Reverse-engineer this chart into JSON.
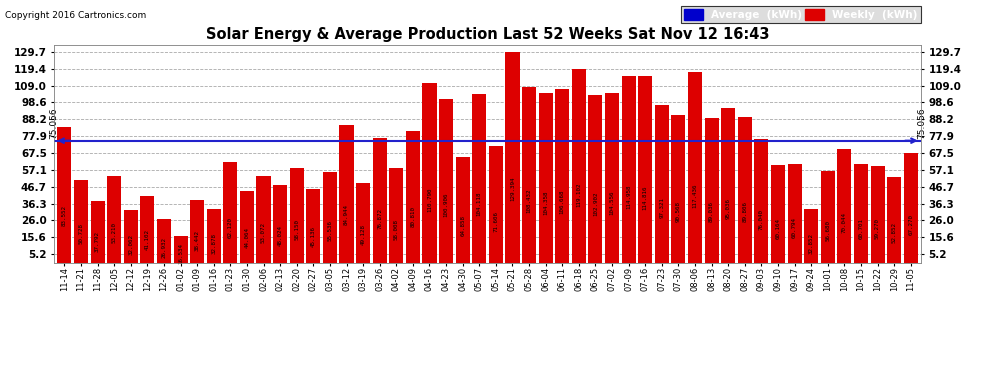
{
  "title": "Solar Energy & Average Production Last 52 Weeks Sat Nov 12 16:43",
  "copyright": "Copyright 2016 Cartronics.com",
  "average_value": 75.056,
  "bar_color": "#dd0000",
  "average_line_color": "#2222cc",
  "background_color": "#ffffff",
  "plot_bg_color": "#ffffff",
  "grid_color": "#aaaaaa",
  "yticks": [
    5.2,
    15.6,
    26.0,
    36.3,
    46.7,
    57.1,
    67.5,
    77.9,
    88.2,
    98.6,
    109.0,
    119.4,
    129.7
  ],
  "ymin": 0,
  "ymax": 134,
  "categories": [
    "11-14",
    "11-21",
    "11-28",
    "12-05",
    "12-12",
    "12-19",
    "12-26",
    "01-02",
    "01-09",
    "01-16",
    "01-23",
    "01-30",
    "02-06",
    "02-13",
    "02-20",
    "02-27",
    "03-05",
    "03-12",
    "03-19",
    "03-26",
    "04-02",
    "04-09",
    "04-16",
    "04-23",
    "04-30",
    "05-07",
    "05-14",
    "05-21",
    "05-28",
    "06-04",
    "06-11",
    "06-18",
    "06-25",
    "07-02",
    "07-09",
    "07-16",
    "07-23",
    "07-30",
    "08-06",
    "08-13",
    "08-20",
    "08-27",
    "09-03",
    "09-10",
    "09-17",
    "09-24",
    "10-01",
    "10-08",
    "10-15",
    "10-22",
    "10-29",
    "11-05"
  ],
  "values": [
    83.552,
    50.728,
    37.792,
    53.21,
    32.062,
    41.102,
    26.932,
    16.534,
    38.442,
    32.878,
    62.12,
    44.064,
    53.072,
    48.024,
    58.15,
    45.136,
    55.536,
    84.944,
    49.128,
    76.872,
    58.008,
    80.81,
    110.79,
    100.906,
    64.858,
    104.118,
    71.606,
    129.394,
    108.432,
    104.358,
    106.668,
    119.102,
    102.902,
    104.556,
    114.958,
    114.816,
    97.321,
    90.568,
    117.436,
    89.036,
    95.036,
    89.806,
    76.04,
    60.164,
    60.794,
    32.852,
    56.68,
    70.044,
    60.701,
    59.27,
    52.852,
    67.27
  ],
  "legend_avg_bg": "#0000cc",
  "legend_weekly_bg": "#dd0000",
  "legend_avg_label": "Average  (kWh)",
  "legend_weekly_label": "Weekly  (kWh)",
  "legend_text_color": "#ffffff"
}
